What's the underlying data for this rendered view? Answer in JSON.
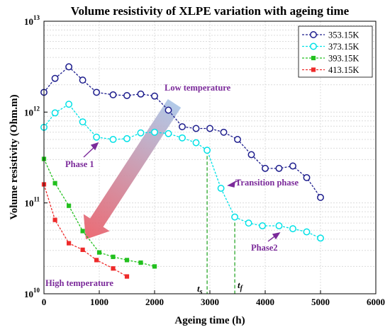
{
  "chart_data": {
    "type": "line",
    "title": "Volume resistivity of XLPE variation with ageing time",
    "xlabel": "Ageing time (h)",
    "ylabel": "Volume resistivity (Ohm.m)",
    "xlim": [
      0,
      6000
    ],
    "ylim": [
      10000000000.0,
      10000000000000.0
    ],
    "yscale": "log",
    "grid": true,
    "legend_position": "top-right",
    "x_ticks": [
      "0",
      "1000",
      "2000",
      "3000",
      "4000",
      "5000",
      "6000"
    ],
    "y_ticks": [
      {
        "value": 10000000000.0,
        "base": "10",
        "exp": "10"
      },
      {
        "value": 100000000000.0,
        "base": "10",
        "exp": "11"
      },
      {
        "value": 1000000000000.0,
        "base": "10",
        "exp": "12"
      },
      {
        "value": 10000000000000.0,
        "base": "10",
        "exp": "13"
      }
    ],
    "series": [
      {
        "name": "353.15K",
        "color": "#1c1c8c",
        "marker": "open-circle",
        "x": [
          0,
          200,
          450,
          700,
          950,
          1250,
          1500,
          1750,
          2000,
          2250,
          2500,
          2750,
          3000,
          3250,
          3500,
          3750,
          4000,
          4250,
          4500,
          4750,
          5000
        ],
        "y": [
          1650000000000.0,
          2350000000000.0,
          3150000000000.0,
          2250000000000.0,
          1650000000000.0,
          1550000000000.0,
          1520000000000.0,
          1580000000000.0,
          1500000000000.0,
          1050000000000.0,
          690000000000.0,
          660000000000.0,
          660000000000.0,
          600000000000.0,
          500000000000.0,
          340000000000.0,
          240000000000.0,
          240000000000.0,
          255000000000.0,
          190000000000.0,
          115000000000.0
        ]
      },
      {
        "name": "373.15K",
        "color": "#00e1e6",
        "marker": "open-circle",
        "x": [
          0,
          200,
          450,
          700,
          950,
          1250,
          1500,
          1750,
          2000,
          2250,
          2500,
          2750,
          2950,
          3200,
          3450,
          3700,
          3950,
          4250,
          4500,
          4750,
          5000
        ],
        "y": [
          680000000000.0,
          980000000000.0,
          1220000000000.0,
          780000000000.0,
          530000000000.0,
          500000000000.0,
          510000000000.0,
          590000000000.0,
          600000000000.0,
          580000000000.0,
          520000000000.0,
          460000000000.0,
          380000000000.0,
          145000000000.0,
          70000000000.0,
          60000000000.0,
          56000000000.0,
          56000000000.0,
          52000000000.0,
          48000000000.0,
          41000000000.0
        ]
      },
      {
        "name": "393.15K",
        "color": "#22c01e",
        "marker": "filled-square",
        "x": [
          0,
          200,
          450,
          700,
          1000,
          1250,
          1500,
          1750,
          2000
        ],
        "y": [
          305000000000.0,
          165000000000.0,
          93000000000.0,
          49000000000.0,
          28500000000.0,
          25500000000.0,
          23500000000.0,
          22000000000.0,
          20000000000.0
        ]
      },
      {
        "name": "413.15K",
        "color": "#ee2a2a",
        "marker": "filled-square",
        "x": [
          0,
          200,
          450,
          700,
          950,
          1250,
          1500
        ],
        "y": [
          160000000000.0,
          65000000000.0,
          36000000000.0,
          30500000000.0,
          23500000000.0,
          19000000000.0,
          15500000000.0
        ]
      }
    ],
    "annotations": {
      "low_temperature": "Low temperature",
      "high_temperature": "High temperature",
      "phase1": "Phase 1",
      "transition_phase": "Transition phase",
      "phase2": "Phase2",
      "ts_main": "t",
      "ts_sub": "s",
      "tf_main": "t",
      "tf_sub": "f",
      "ts_x": 2950,
      "tf_x": 3450
    },
    "colors": {
      "arrow_top": "#a9c4e6",
      "arrow_bottom": "#ea5a64",
      "annotation_text": "#7b2a9a",
      "vline": "#2ca82c"
    }
  }
}
